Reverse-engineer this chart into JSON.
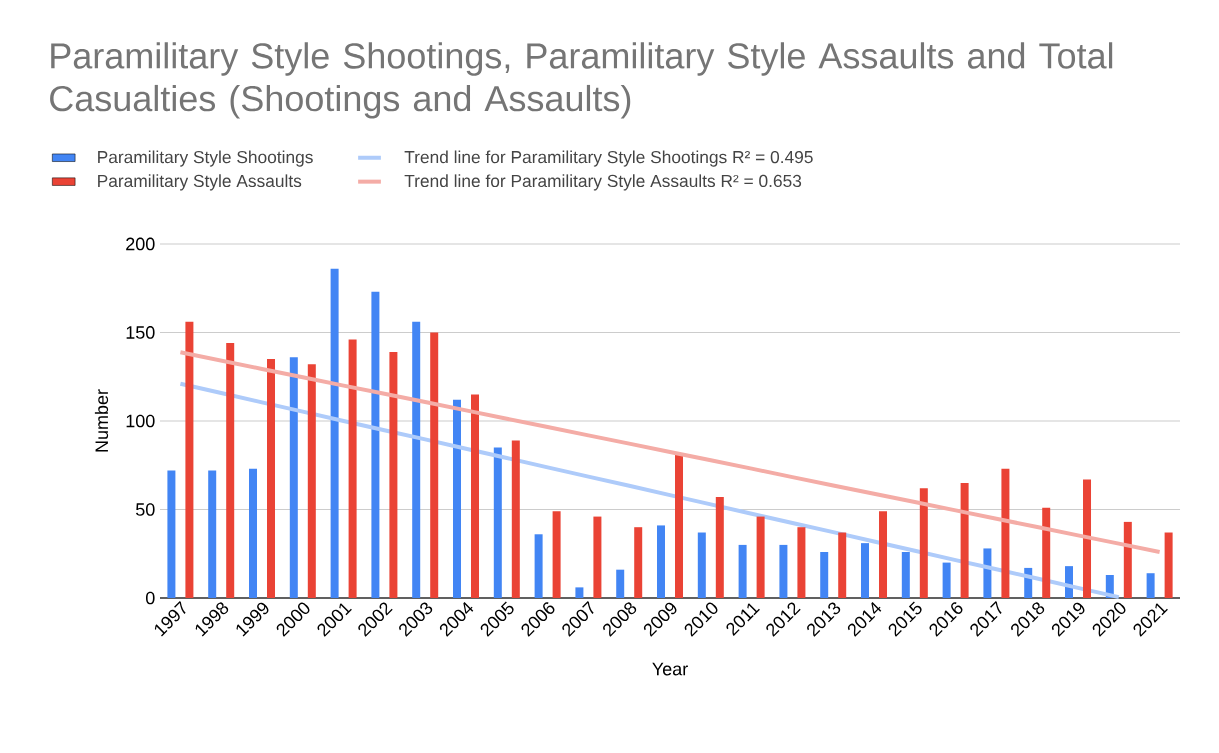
{
  "chart_data": {
    "type": "bar",
    "title": "Paramilitary Style Shootings, Paramilitary Style Assaults and Total Casualties (Shootings and Assaults)",
    "xlabel": "Year",
    "ylabel": "Number",
    "categories": [
      "1997",
      "1998",
      "1999",
      "2000",
      "2001",
      "2002",
      "2003",
      "2004",
      "2005",
      "2006",
      "2007",
      "2008",
      "2009",
      "2010",
      "2011",
      "2012",
      "2013",
      "2014",
      "2015",
      "2016",
      "2017",
      "2018",
      "2019",
      "2020",
      "2021"
    ],
    "series": [
      {
        "name": "Paramilitary Style Shootings",
        "color": "#4285f4",
        "values": [
          72,
          72,
          73,
          136,
          186,
          173,
          156,
          112,
          85,
          36,
          6,
          16,
          41,
          37,
          30,
          30,
          26,
          31,
          26,
          20,
          28,
          17,
          18,
          13,
          14
        ]
      },
      {
        "name": "Trend line for Paramilitary Style Shootings R² = 0.495",
        "type": "line",
        "color": "#aecbfa",
        "values": [
          121,
          115.8,
          110.5,
          105.3,
          100,
          94.8,
          89.6,
          84.3,
          79.1,
          73.8,
          68.6,
          63.4,
          58.1,
          52.9,
          47.6,
          42.4,
          37.2,
          31.9,
          26.7,
          21.4,
          16.2,
          11,
          5.7,
          0.5,
          null
        ]
      },
      {
        "name": "Paramilitary Style Assaults",
        "color": "#ea4335",
        "values": [
          156,
          144,
          135,
          132,
          146,
          139,
          150,
          115,
          89,
          49,
          46,
          40,
          81,
          57,
          46,
          40,
          37,
          49,
          62,
          65,
          73,
          51,
          67,
          43,
          37
        ]
      },
      {
        "name": "Trend line for Paramilitary Style Assaults R² = 0.653",
        "type": "line",
        "color": "#f4aca6",
        "values": [
          138.8,
          134.1,
          129.4,
          124.7,
          120,
          115.4,
          110.7,
          106,
          101.3,
          96.6,
          91.9,
          87.2,
          82.5,
          77.8,
          73.1,
          68.3,
          63.6,
          58.9,
          54.2,
          49.5,
          44.8,
          40.1,
          35.4,
          30.7,
          26
        ]
      }
    ],
    "ylim": [
      0,
      200
    ],
    "yticks": [
      0,
      50,
      100,
      150,
      200
    ],
    "grid": "y",
    "legend": "top",
    "marker": "none"
  }
}
